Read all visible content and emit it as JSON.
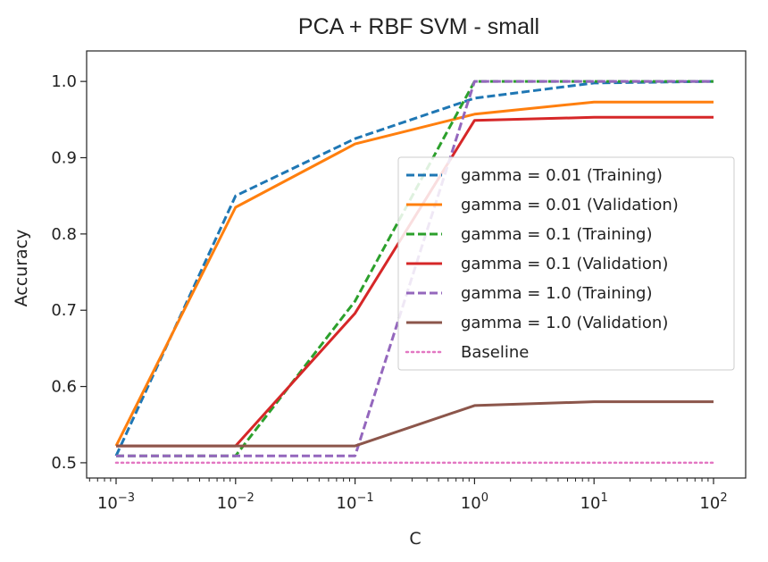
{
  "chart_data": {
    "type": "line",
    "title": "PCA + RBF SVM - small",
    "xlabel": "C",
    "ylabel": "Accuracy",
    "xscale": "log",
    "xlim": [
      0.001,
      100
    ],
    "ylim": [
      0.48,
      1.04
    ],
    "x": [
      0.001,
      0.01,
      0.1,
      1,
      10,
      100
    ],
    "x_tick_labels": [
      {
        "base": "10",
        "exp": "−3"
      },
      {
        "base": "10",
        "exp": "−2"
      },
      {
        "base": "10",
        "exp": "−1"
      },
      {
        "base": "10",
        "exp": "0"
      },
      {
        "base": "10",
        "exp": "1"
      },
      {
        "base": "10",
        "exp": "2"
      }
    ],
    "y_ticks": [
      0.5,
      0.6,
      0.7,
      0.8,
      0.9,
      1.0
    ],
    "y_tick_labels": [
      "0.5",
      "0.6",
      "0.7",
      "0.8",
      "0.9",
      "1.0"
    ],
    "grid": false,
    "legend_position": "center-right",
    "series": [
      {
        "name": "gamma = 0.01 (Training)",
        "color": "#1f77b4",
        "style": "dashed",
        "values": [
          0.509,
          0.85,
          0.925,
          0.978,
          0.998,
          1.0
        ]
      },
      {
        "name": "gamma = 0.01 (Validation)",
        "color": "#ff7f0e",
        "style": "solid",
        "values": [
          0.522,
          0.835,
          0.918,
          0.957,
          0.973,
          0.973
        ]
      },
      {
        "name": "gamma = 0.1 (Training)",
        "color": "#2ca02c",
        "style": "dashed",
        "values": [
          0.509,
          0.509,
          0.712,
          1.0,
          1.0,
          1.0
        ]
      },
      {
        "name": "gamma = 0.1 (Validation)",
        "color": "#d62728",
        "style": "solid",
        "values": [
          0.522,
          0.522,
          0.696,
          0.949,
          0.953,
          0.953
        ]
      },
      {
        "name": "gamma = 1.0 (Training)",
        "color": "#9467bd",
        "style": "dashed",
        "values": [
          0.509,
          0.509,
          0.509,
          1.0,
          1.0,
          1.0
        ]
      },
      {
        "name": "gamma = 1.0 (Validation)",
        "color": "#8c564b",
        "style": "solid",
        "values": [
          0.522,
          0.522,
          0.522,
          0.575,
          0.58,
          0.58
        ]
      },
      {
        "name": "Baseline",
        "color": "#e377c2",
        "style": "dotted",
        "values": [
          0.5,
          0.5,
          0.5,
          0.5,
          0.5,
          0.5
        ]
      }
    ]
  }
}
